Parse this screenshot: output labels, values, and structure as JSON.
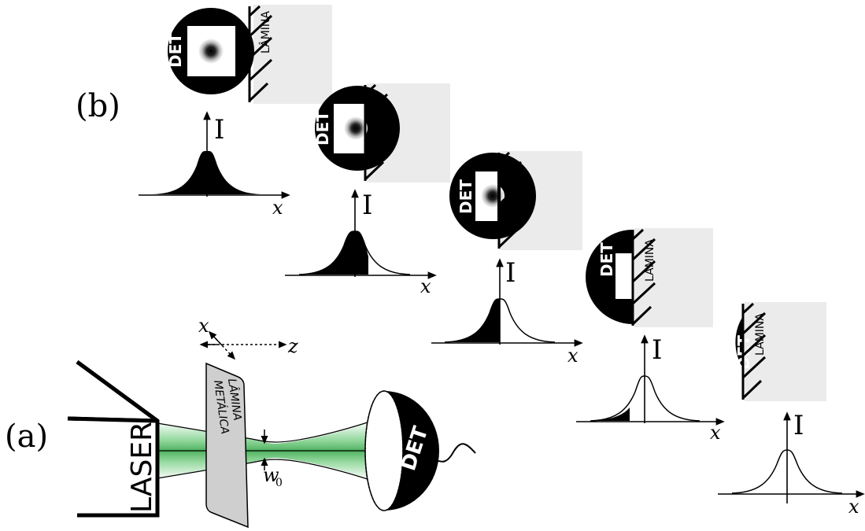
{
  "labels": {
    "panel_a": "(a)",
    "panel_b": "(b)",
    "intensity_axis": "I",
    "position_axis": "x",
    "detector": "DET",
    "blade": "LÂMINA",
    "laser": "LASER",
    "metal_plate_line1": "LÂMINA",
    "metal_plate_line2": "METÁLICA",
    "beam_waist": "w",
    "beam_waist_subscript": "0",
    "coord_x": "x",
    "coord_z": "z"
  },
  "knife_edge_sequence": [
    {
      "step": 1,
      "detector_exposure": "full",
      "shaded_fraction": 1.0
    },
    {
      "step": 2,
      "detector_exposure": "partial",
      "shaded_fraction": 0.75
    },
    {
      "step": 3,
      "detector_exposure": "half",
      "shaded_fraction": 0.5
    },
    {
      "step": 4,
      "detector_exposure": "small",
      "shaded_fraction": 0.2
    },
    {
      "step": 5,
      "detector_exposure": "none",
      "shaded_fraction": 0.0
    }
  ],
  "colors": {
    "beam_green": "#55c266",
    "blade_gray": "#ebebeb",
    "plate_gray": "#cfcfcf",
    "detector_black": "#000000"
  }
}
